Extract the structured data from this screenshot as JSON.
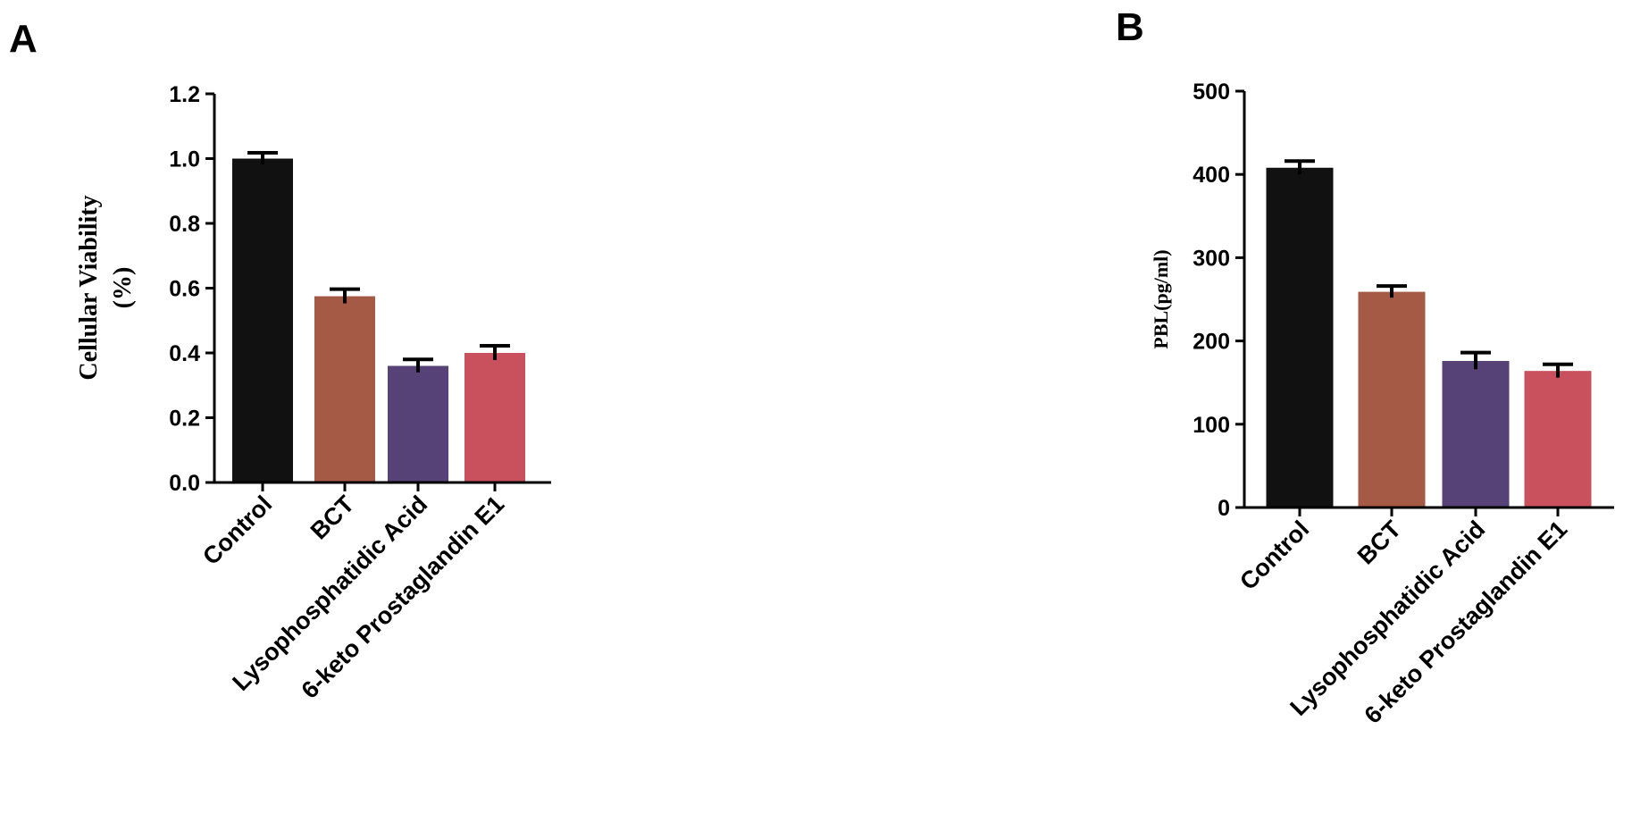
{
  "chart_data": [
    {
      "panel": "A",
      "type": "bar",
      "categories": [
        "Control",
        "BCT",
        "Lysophosphatidic Acid",
        "6-keto Prostaglandin E1"
      ],
      "values": [
        1.0,
        0.575,
        0.36,
        0.4
      ],
      "errors": [
        0.018,
        0.022,
        0.02,
        0.022
      ],
      "colors": [
        "#111111",
        "#A45A45",
        "#564276",
        "#C9515E"
      ],
      "ylabel_lines": [
        "Cellular Viability",
        "(%)"
      ],
      "ylim": [
        0,
        1.2
      ],
      "yticks": [
        0.0,
        0.2,
        0.4,
        0.6,
        0.8,
        1.0,
        1.2
      ],
      "ytick_labels": [
        "0.0",
        "0.2",
        "0.4",
        "0.6",
        "0.8",
        "1.0",
        "1.2"
      ],
      "grid": false
    },
    {
      "panel": "B",
      "type": "bar",
      "categories": [
        "Control",
        "BCT",
        "Lysophosphatidic Acid",
        "6-keto Prostaglandin E1"
      ],
      "values": [
        408,
        259,
        176,
        164
      ],
      "errors": [
        8,
        7,
        10,
        8
      ],
      "colors": [
        "#111111",
        "#A45A45",
        "#564276",
        "#C9515E"
      ],
      "ylabel_lines": [
        "PBL(pg/ml)"
      ],
      "ylim": [
        0,
        500
      ],
      "yticks": [
        0,
        100,
        200,
        300,
        400,
        500
      ],
      "ytick_labels": [
        "0",
        "100",
        "200",
        "300",
        "400",
        "500"
      ],
      "grid": false
    }
  ]
}
